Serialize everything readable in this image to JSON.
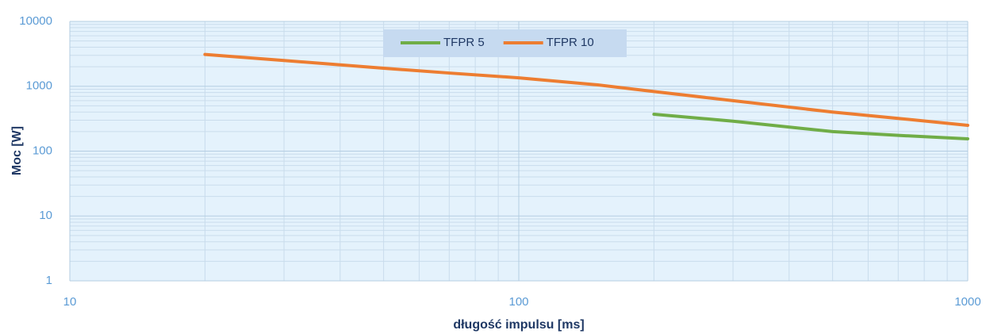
{
  "chart_data": {
    "type": "line",
    "x_label": "długość impulsu [ms]",
    "y_label": "Moc [W]",
    "x": [
      20,
      30,
      50,
      70,
      100,
      150,
      200,
      300,
      500,
      700,
      1000
    ],
    "series": [
      {
        "name": "TFPR 5",
        "color": "#70ad47",
        "values": [
          null,
          null,
          null,
          null,
          null,
          null,
          370,
          290,
          200,
          175,
          155
        ]
      },
      {
        "name": "TFPR 10",
        "color": "#ed7d31",
        "values": [
          3100,
          2500,
          1900,
          1600,
          1350,
          1050,
          830,
          600,
          400,
          320,
          250
        ]
      }
    ],
    "xlim": [
      10,
      1000
    ],
    "xticks": [
      10,
      100,
      1000
    ],
    "ylim": [
      1,
      10000
    ],
    "yticks": [
      1,
      10,
      100,
      1000,
      10000
    ],
    "xscale": "log",
    "yscale": "log",
    "grid": true,
    "minor_grid": true,
    "legend": "top"
  }
}
